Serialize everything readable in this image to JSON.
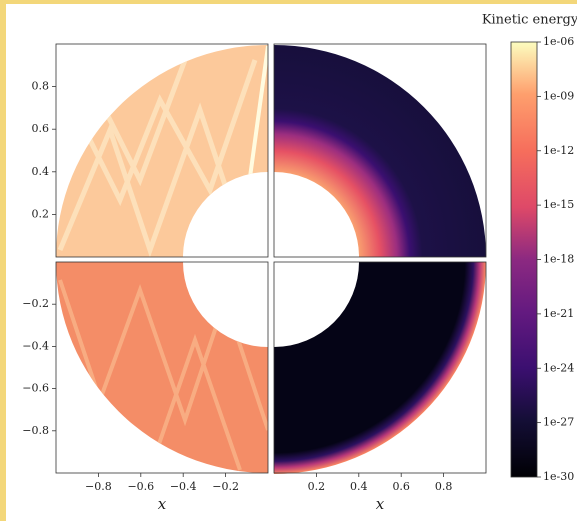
{
  "chart_data": {
    "type": "heatmap",
    "colorbar": {
      "label": "Kinetic energy",
      "log": true,
      "lim": [
        1e-30,
        1e-06
      ],
      "ticks": [
        {
          "value": 1e-06,
          "label": "1e-06"
        },
        {
          "value": 1e-09,
          "label": "1e-09"
        },
        {
          "value": 1e-12,
          "label": "1e-12"
        },
        {
          "value": 1e-15,
          "label": "1e-15"
        },
        {
          "value": 1e-18,
          "label": "1e-18"
        },
        {
          "value": 1e-21,
          "label": "1e-21"
        },
        {
          "value": 1e-24,
          "label": "1e-24"
        },
        {
          "value": 1e-27,
          "label": "1e-27"
        },
        {
          "value": 1e-30,
          "label": "1e-30"
        }
      ]
    },
    "panels": [
      {
        "xlim": [
          -1,
          0
        ],
        "ylim": [
          0,
          1
        ],
        "yticks": [
          0.2,
          0.4,
          0.6,
          0.8
        ]
      },
      {
        "xlim": [
          0,
          1
        ],
        "ylim": [
          0,
          1
        ]
      },
      {
        "xlim": [
          -1,
          0
        ],
        "ylim": [
          -1,
          0
        ],
        "xlabel": "x",
        "xticks": [
          {
            "value": -0.8,
            "label": "−0.8"
          },
          {
            "value": -0.6,
            "label": "−0.6"
          },
          {
            "value": -0.4,
            "label": "−0.4"
          },
          {
            "value": -0.2,
            "label": "−0.2"
          }
        ],
        "yticks": [
          {
            "value": -0.2,
            "label": "−0.2"
          },
          {
            "value": -0.4,
            "label": "−0.4"
          },
          {
            "value": -0.6,
            "label": "−0.6"
          },
          {
            "value": -0.8,
            "label": "−0.8"
          }
        ]
      },
      {
        "xlim": [
          0,
          1
        ],
        "ylim": [
          -1,
          0
        ],
        "xlabel": "x",
        "xticks": [
          0.2,
          0.4,
          0.6,
          0.8
        ]
      }
    ]
  }
}
